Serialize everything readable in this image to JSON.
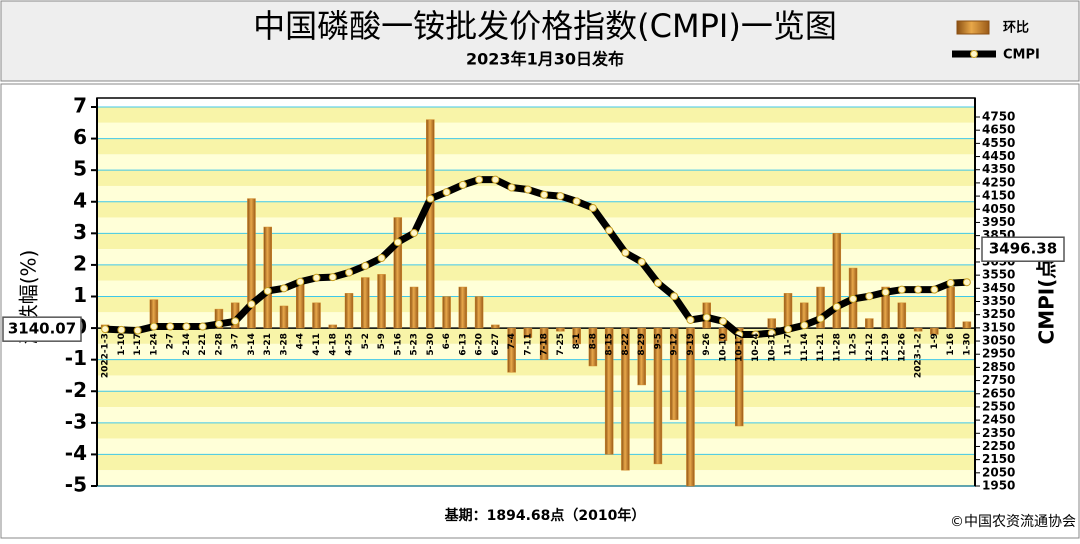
{
  "chart_data": {
    "type": "bar-line",
    "title": "中国磷酸一铵批发价格指数(CMPI)一览图",
    "subtitle": "2023年1月30日发布",
    "ylabel": "涨跌幅(%)",
    "y2label": "CMPI(点)",
    "base_note": "基期：1894.68点（2010年）",
    "source": "©中国农资流通协会",
    "annotations": [
      "3140.07",
      "3496.38"
    ],
    "categories": [
      "2022-1-3",
      "1-10",
      "1-17",
      "1-24",
      "2-7",
      "2-14",
      "2-21",
      "2-28",
      "3-7",
      "3-14",
      "3-21",
      "3-28",
      "4-4",
      "4-11",
      "4-18",
      "4-25",
      "5-2",
      "5-9",
      "5-16",
      "5-23",
      "5-30",
      "6-6",
      "6-13",
      "6-20",
      "6-27",
      "7-4",
      "7-11",
      "7-18",
      "7-25",
      "8-1",
      "8-8",
      "8-15",
      "8-22",
      "8-29",
      "9-5",
      "9-12",
      "9-19",
      "9-26",
      "10-10",
      "10-17",
      "10-24",
      "10-31",
      "11-7",
      "11-14",
      "11-21",
      "11-28",
      "12-5",
      "12-12",
      "12-19",
      "12-26",
      "2023-1-2",
      "1-9",
      "1-16",
      "1-30"
    ],
    "series": [
      {
        "name": "环比",
        "type": "bar",
        "color": "#d08a2c",
        "values": [
          0.1,
          0,
          0,
          0.9,
          0.1,
          0,
          0.1,
          0.6,
          0.8,
          4.1,
          3.2,
          0.7,
          1.4,
          0.8,
          0.1,
          1.1,
          1.6,
          1.7,
          3.5,
          1.3,
          6.6,
          1.0,
          1.3,
          1.0,
          0.1,
          -1.4,
          -0.3,
          -1.0,
          -0.1,
          -0.5,
          -1.2,
          -4.0,
          -4.5,
          -1.8,
          -4.3,
          -2.9,
          -5.0,
          0.8,
          -0.4,
          -3.1,
          0,
          0.3,
          1.1,
          0.8,
          1.3,
          3.0,
          1.9,
          0.3,
          1.3,
          0.8,
          -0.1,
          -0.2,
          1.3,
          0.2
        ]
      },
      {
        "name": "CMPI",
        "type": "line",
        "axis": "y2",
        "color": "#000000",
        "values": [
          3140.07,
          3135,
          3130,
          3160,
          3160,
          3160,
          3160,
          3180,
          3200,
          3330,
          3430,
          3450,
          3500,
          3530,
          3535,
          3570,
          3620,
          3680,
          3800,
          3870,
          4130,
          4180,
          4235,
          4275,
          4275,
          4215,
          4200,
          4160,
          4150,
          4110,
          4060,
          3890,
          3720,
          3650,
          3490,
          3390,
          3210,
          3230,
          3200,
          3100,
          3100,
          3110,
          3140,
          3170,
          3220,
          3310,
          3370,
          3390,
          3420,
          3440,
          3440,
          3440,
          3490,
          3496.38
        ]
      }
    ],
    "ylim": [
      -5,
      7
    ],
    "yticks": [
      -5,
      -4,
      -3,
      -2,
      -1,
      0,
      1,
      2,
      3,
      4,
      5,
      6,
      7
    ],
    "y2lim": [
      1950,
      4826
    ],
    "y2ticks": [
      1950,
      2050,
      2150,
      2250,
      2350,
      2450,
      2550,
      2650,
      2750,
      2850,
      2950,
      3050,
      3150,
      3250,
      3350,
      3450,
      3550,
      3650,
      3750,
      3850,
      3950,
      4050,
      4150,
      4250,
      4350,
      4450,
      4550,
      4650,
      4750
    ],
    "grid": true,
    "legend": "top-right"
  }
}
